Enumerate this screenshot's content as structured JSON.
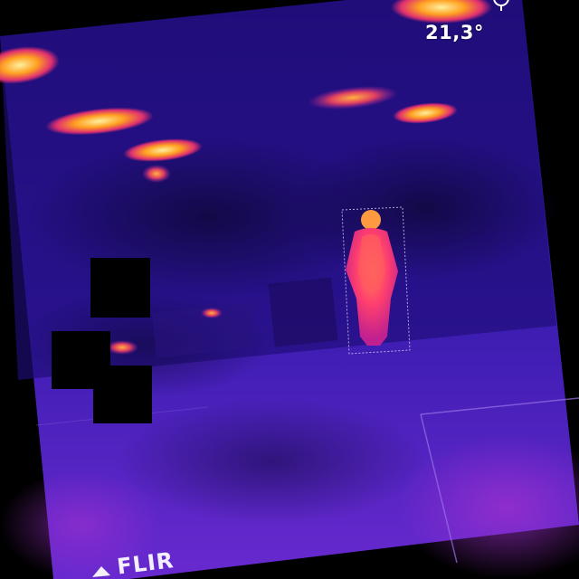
{
  "overlay": {
    "temperature": "21,3°",
    "brand": "FLIR"
  },
  "colors": {
    "background": "#000000",
    "cold": "#1a0a6e",
    "mid": "#4020c0",
    "warm": "#ff3a6a",
    "hot": "#ffb020",
    "overlay_text": "#ffffff"
  },
  "icons": {
    "brand_logo": "flir-logo-icon",
    "crosshair": "crosshair-icon"
  }
}
